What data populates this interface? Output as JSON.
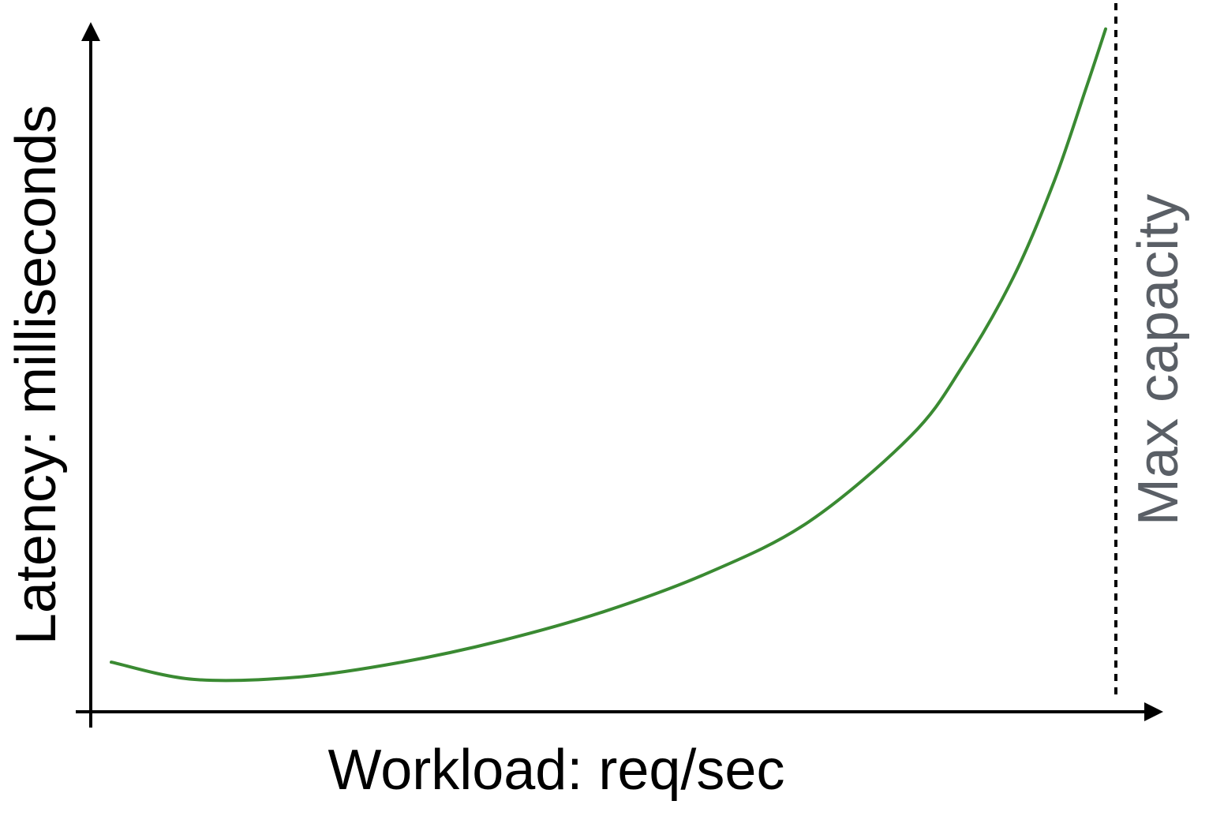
{
  "chart_data": {
    "type": "line",
    "title": "",
    "xlabel": "Workload: req/sec",
    "ylabel": "Latency: milliseconds",
    "xlim": [
      0,
      1
    ],
    "ylim": [
      0,
      1
    ],
    "grid": false,
    "tick_labels": false,
    "series": [
      {
        "color": "#3a8a32",
        "x": [
          0.02,
          0.1,
          0.2,
          0.3,
          0.4,
          0.5,
          0.6,
          0.7,
          0.8,
          0.85,
          0.9,
          0.94,
          0.97,
          0.99
        ],
        "y": [
          0.072,
          0.047,
          0.05,
          0.071,
          0.103,
          0.145,
          0.2,
          0.275,
          0.4,
          0.5,
          0.63,
          0.77,
          0.9,
          0.99
        ]
      }
    ],
    "reference_line": {
      "x": 1.0,
      "style": "dotted",
      "color": "#000000",
      "label": "Max capacity",
      "label_color": "#5a5f66"
    }
  }
}
